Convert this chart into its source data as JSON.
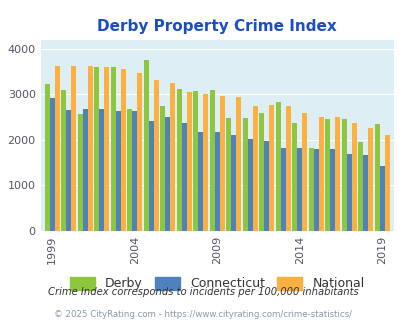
{
  "title": "Derby Property Crime Index",
  "title_color": "#1a4fc4",
  "years": [
    1999,
    2000,
    2001,
    2002,
    2003,
    2004,
    2005,
    2006,
    2007,
    2008,
    2009,
    2010,
    2011,
    2012,
    2013,
    2014,
    2015,
    2016,
    2017,
    2018,
    2019
  ],
  "derby": [
    3220,
    3100,
    2560,
    3590,
    3590,
    2680,
    3760,
    2750,
    3110,
    3080,
    3100,
    2480,
    2480,
    2600,
    2840,
    2360,
    1820,
    2450,
    2450,
    1960,
    2340
  ],
  "connecticut": [
    2910,
    2660,
    2680,
    2680,
    2640,
    2640,
    2410,
    2500,
    2360,
    2170,
    2170,
    2110,
    2010,
    1970,
    1820,
    1820,
    1790,
    1790,
    1680,
    1660,
    1430
  ],
  "national": [
    3620,
    3620,
    3620,
    3600,
    3560,
    3470,
    3310,
    3250,
    3060,
    3010,
    2970,
    2940,
    2750,
    2770,
    2740,
    2600,
    2510,
    2500,
    2360,
    2260,
    2100
  ],
  "derby_color": "#8dc63f",
  "connecticut_color": "#4f81bd",
  "national_color": "#fbb040",
  "bg_color": "#ddeef5",
  "subtitle": "Crime Index corresponds to incidents per 100,000 inhabitants",
  "footnote": "© 2025 CityRating.com - https://www.cityrating.com/crime-statistics/",
  "ylabel_ticks": [
    0,
    1000,
    2000,
    3000,
    4000
  ],
  "xlim_labels": [
    1999,
    2004,
    2009,
    2014,
    2019
  ],
  "ylim": [
    0,
    4200
  ]
}
